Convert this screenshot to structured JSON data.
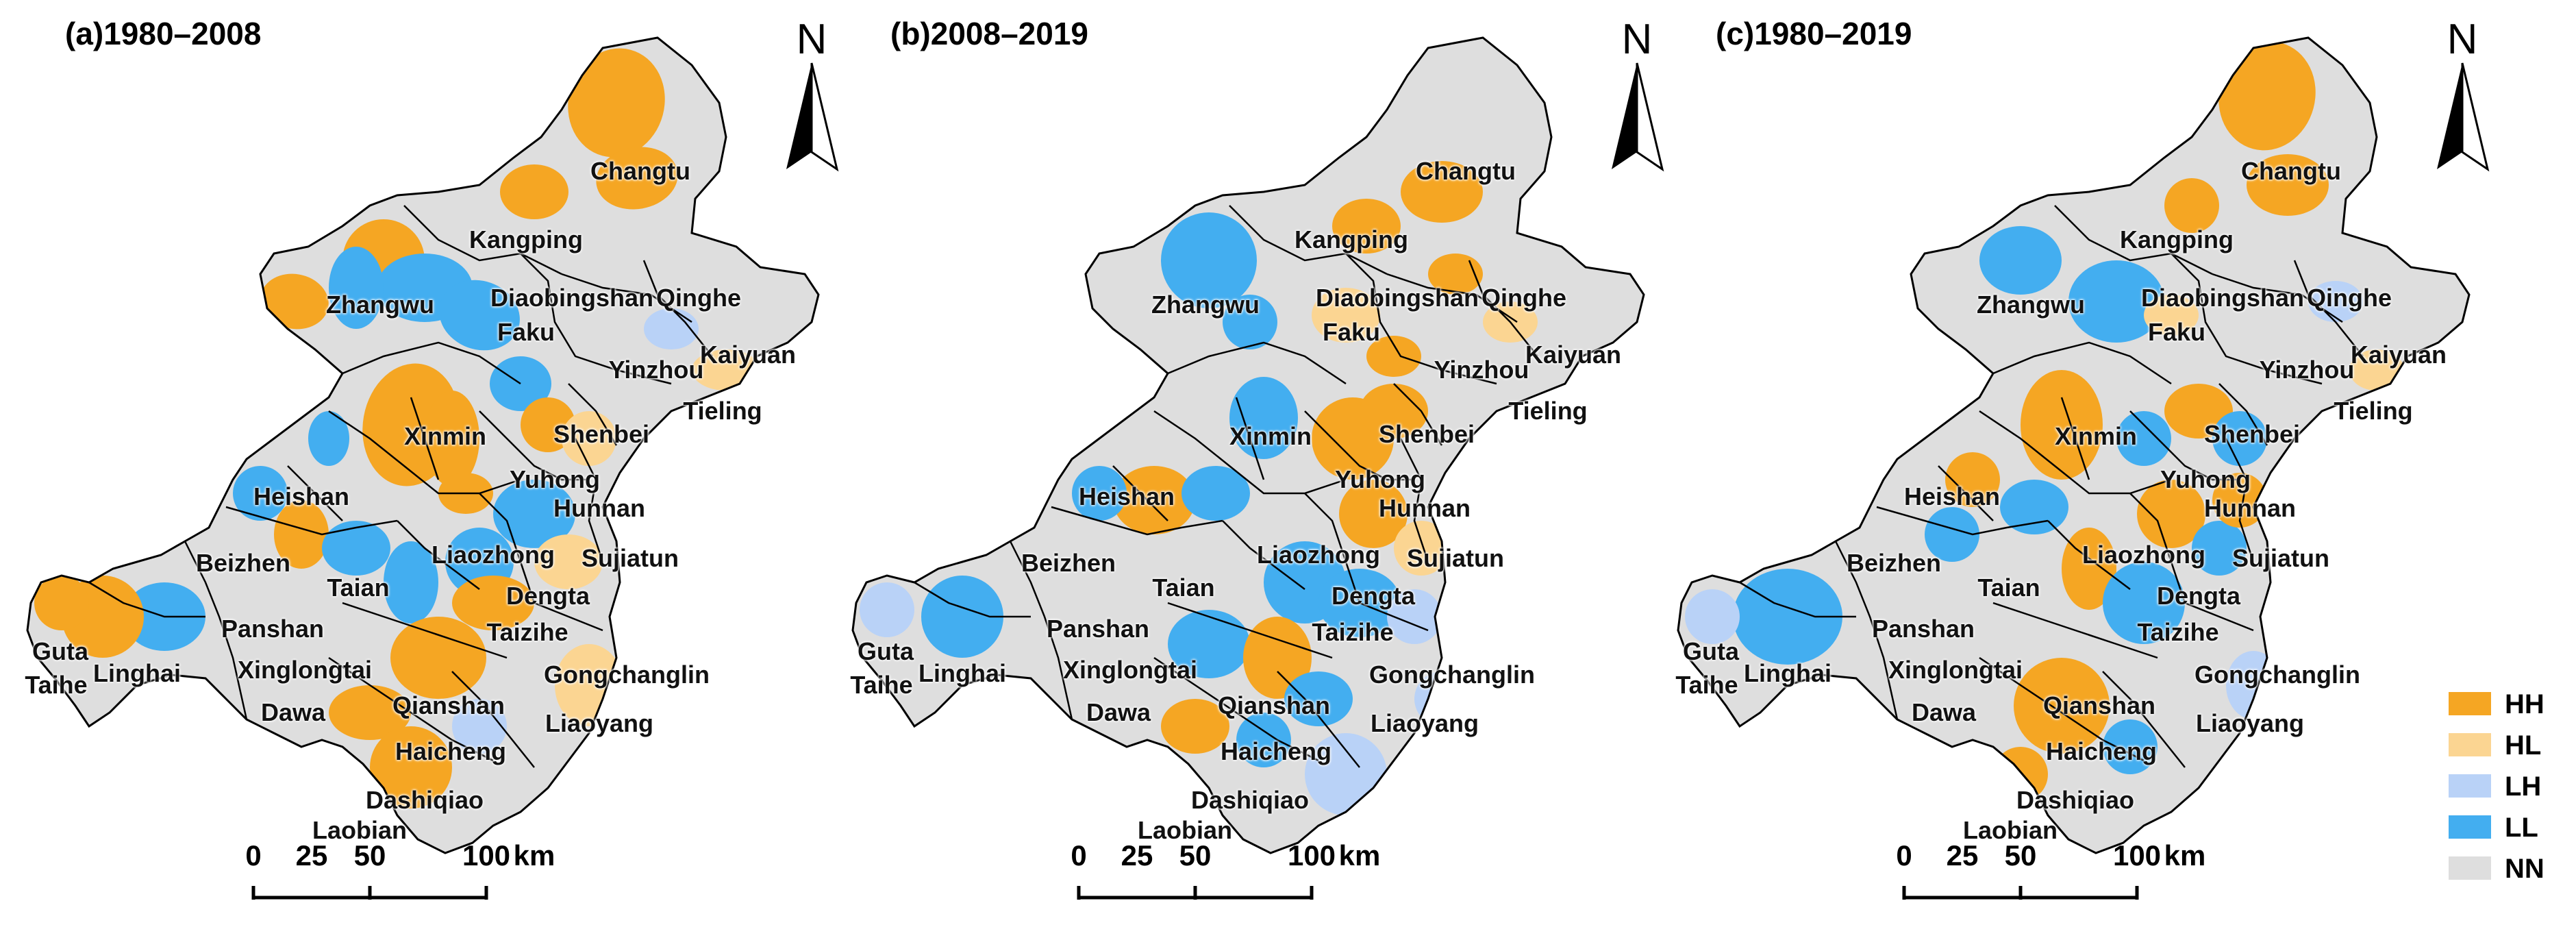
{
  "colors": {
    "HH": "#f5a623",
    "HL": "#fbd592",
    "LH": "#b9d2f7",
    "LL": "#43aef0",
    "NN": "#dedede",
    "boundary": "#000000"
  },
  "panels": [
    {
      "title": "(a)1980–2008",
      "north_label": "N",
      "scale": {
        "ticks": [
          "0",
          "25",
          "50",
          "100"
        ],
        "unit": "km"
      }
    },
    {
      "title": "(b)2008–2019",
      "north_label": "N",
      "scale": {
        "ticks": [
          "0",
          "25",
          "50",
          "100"
        ],
        "unit": "km"
      }
    },
    {
      "title": "(c)1980–2019",
      "north_label": "N",
      "scale": {
        "ticks": [
          "0",
          "25",
          "50",
          "100"
        ],
        "unit": "km"
      }
    }
  ],
  "places": [
    "Changtu",
    "Kangping",
    "Zhangwu",
    "Diaobingshan",
    "Qinghe",
    "Faku",
    "Kaiyuan",
    "Yinzhou",
    "Tieling",
    "Xinmin",
    "Shenbei",
    "Yuhong",
    "Hunnan",
    "Sujiatun",
    "Heishan",
    "Liaozhong",
    "Beizhen",
    "Taian",
    "Dengta",
    "Panshan",
    "Taizihe",
    "Xinglongtai",
    "Gongchanglin",
    "Guta",
    "Linghai",
    "Taihe",
    "Qianshan",
    "Dawa",
    "Liaoyang",
    "Haicheng",
    "Dashiqiao",
    "Laobian",
    "Hunnan2"
  ],
  "place_labels": {
    "Changtu": "Changtu",
    "Kangping": "Kangping",
    "Zhangwu": "Zhangwu",
    "Diaobingshan": "Diaobingshan",
    "Qinghe": "Qinghe",
    "Faku": "Faku",
    "Kaiyuan": "Kaiyuan",
    "Yinzhou": "Yinzhou",
    "Tieling": "Tieling",
    "Xinmin": "Xinmin",
    "Shenbei": "Shenbei",
    "Yuhong": "Yuhong",
    "Hunnan": "Hunnan",
    "Sujiatun": "Sujiatun",
    "Heishan": "Heishan",
    "Liaozhong": "Liaozhong",
    "Beizhen": "Beizhen",
    "Taian": "Taian",
    "Dengta": "Dengta",
    "Panshan": "Panshan",
    "Taizihe": "Taizihe",
    "Xinglongtai": "Xinglongtai",
    "Gongchanglin": "Gongchanglin",
    "Guta": "Guta",
    "Linghai": "Linghai",
    "Taihe": "Taihe",
    "Qianshan": "Qianshan",
    "Dawa": "Dawa",
    "Liaoyang": "Liaoyang",
    "Haicheng": "Haicheng",
    "Dashiqiao": "Dashiqiao",
    "Laobian": "Laobian",
    "Hunnan2": "Hunnan"
  },
  "legend": [
    {
      "key": "HH",
      "label": "HH"
    },
    {
      "key": "HL",
      "label": "HL"
    },
    {
      "key": "LH",
      "label": "LH"
    },
    {
      "key": "LL",
      "label": "LL"
    },
    {
      "key": "NN",
      "label": "NN"
    }
  ]
}
